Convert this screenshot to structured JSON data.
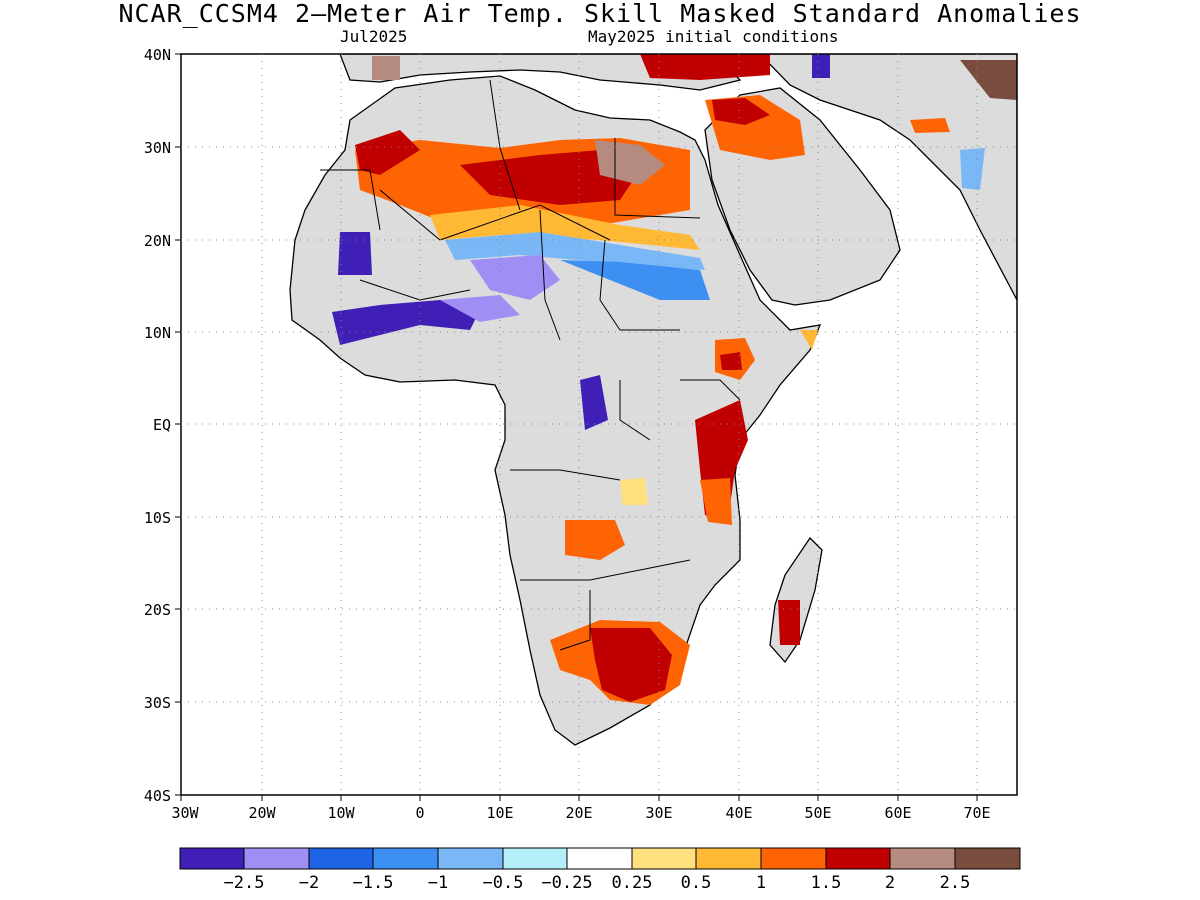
{
  "title": "NCAR_CCSM4 2—Meter Air Temp. Skill Masked Standard Anomalies",
  "subtitle_left": "Jul2025",
  "subtitle_right": "May2025 initial conditions",
  "lat_labels": [
    "40N",
    "30N",
    "20N",
    "10N",
    "EQ",
    "10S",
    "20S",
    "30S",
    "40S"
  ],
  "lon_labels": [
    "30W",
    "20W",
    "10W",
    "0",
    "10E",
    "20E",
    "30E",
    "40E",
    "50E",
    "60E",
    "70E"
  ],
  "colorbar": {
    "colors": [
      "#3f1fb6",
      "#9f8ff5",
      "#1f63e6",
      "#3d8ff2",
      "#79b7f7",
      "#b4eef9",
      "#ffffff",
      "#ffe07f",
      "#ffb935",
      "#ff6404",
      "#c00000",
      "#b48b7e",
      "#7a4c3d"
    ],
    "labels": [
      "−2.5",
      "−2",
      "−1.5",
      "−1",
      "−0.5",
      "−0.25",
      "0.25",
      "0.5",
      "1",
      "1.5",
      "2",
      "2.5"
    ]
  },
  "colors": {
    "land_masked": "#dcdcdc",
    "ocean": "#ffffff",
    "coast": "#000000"
  }
}
